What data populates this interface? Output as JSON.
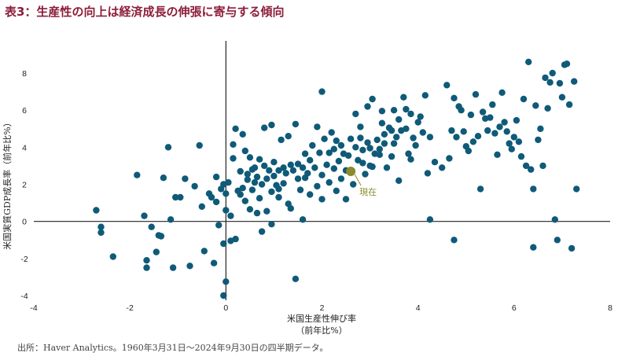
{
  "title": "表3：生産性の向上は経済成長の伸張に寄与する傾向",
  "source": "出所：Haver Analytics。1960年3月31日～2024年9月30日の四半期データ。",
  "chart_data": {
    "type": "scatter",
    "xlabel_line1": "米国生産性伸び率",
    "xlabel_line2": "（前年比%）",
    "ylabel": "米国実質GDP成長率（前年比%）",
    "xlim": [
      -4,
      8
    ],
    "ylim": [
      -4,
      9
    ],
    "xticks": [
      -4,
      -2,
      0,
      2,
      4,
      6,
      8
    ],
    "yticks": [
      -4,
      -2,
      0,
      2,
      4,
      6,
      8
    ],
    "grid": false,
    "point_color": "#0f5a78",
    "highlight_color": "#8c8a2a",
    "highlight": {
      "label": "現在",
      "x": 2.6,
      "y": 2.7
    },
    "points": [
      [
        -2.7,
        0.6
      ],
      [
        -2.6,
        -0.3
      ],
      [
        -2.6,
        -0.6
      ],
      [
        -2.35,
        -1.9
      ],
      [
        -1.85,
        2.5
      ],
      [
        -1.7,
        0.3
      ],
      [
        -1.65,
        -2.1
      ],
      [
        -1.65,
        -2.5
      ],
      [
        -1.55,
        -0.3
      ],
      [
        -1.45,
        -1.65
      ],
      [
        -1.4,
        -0.75
      ],
      [
        -1.35,
        -0.8
      ],
      [
        -1.3,
        2.35
      ],
      [
        -1.2,
        4.0
      ],
      [
        -1.15,
        0.1
      ],
      [
        -1.1,
        -2.5
      ],
      [
        -1.05,
        1.3
      ],
      [
        -0.95,
        1.3
      ],
      [
        -0.85,
        2.3
      ],
      [
        -0.75,
        -2.4
      ],
      [
        -0.65,
        1.9
      ],
      [
        -0.55,
        4.1
      ],
      [
        -0.5,
        0.8
      ],
      [
        -0.45,
        -1.6
      ],
      [
        -0.35,
        1.5
      ],
      [
        -0.3,
        1.3
      ],
      [
        -0.25,
        -2.25
      ],
      [
        -0.2,
        2.4
      ],
      [
        -0.2,
        1.05
      ],
      [
        -0.15,
        -0.2
      ],
      [
        -0.1,
        1.75
      ],
      [
        -0.05,
        2.0
      ],
      [
        -0.05,
        -1.2
      ],
      [
        -0.05,
        -4.0
      ],
      [
        0.0,
        -3.25
      ],
      [
        0.0,
        1.5
      ],
      [
        0.0,
        0.6
      ],
      [
        0.05,
        2.1
      ],
      [
        0.1,
        -1.05
      ],
      [
        0.1,
        0.3
      ],
      [
        0.15,
        4.15
      ],
      [
        0.15,
        3.4
      ],
      [
        0.2,
        5.0
      ],
      [
        0.2,
        -0.95
      ],
      [
        0.25,
        1.65
      ],
      [
        0.3,
        2.7
      ],
      [
        0.35,
        4.7
      ],
      [
        0.35,
        1.8
      ],
      [
        0.4,
        3.8
      ],
      [
        0.4,
        1.1
      ],
      [
        0.45,
        2.55
      ],
      [
        0.5,
        3.45
      ],
      [
        0.5,
        0.65
      ],
      [
        0.55,
        2.8
      ],
      [
        0.55,
        1.7
      ],
      [
        0.6,
        2.9
      ],
      [
        0.6,
        2.1
      ],
      [
        0.65,
        2.4
      ],
      [
        0.65,
        0.45
      ],
      [
        0.7,
        3.35
      ],
      [
        0.7,
        1.25
      ],
      [
        0.75,
        2.0
      ],
      [
        0.75,
        -0.55
      ],
      [
        0.8,
        5.05
      ],
      [
        0.8,
        3.0
      ],
      [
        0.85,
        2.3
      ],
      [
        0.85,
        0.55
      ],
      [
        0.9,
        2.75
      ],
      [
        0.95,
        1.6
      ],
      [
        0.95,
        -0.15
      ],
      [
        1.0,
        3.2
      ],
      [
        1.0,
        2.45
      ],
      [
        1.05,
        1.95
      ],
      [
        1.1,
        2.75
      ],
      [
        1.1,
        1.3
      ],
      [
        1.15,
        4.4
      ],
      [
        1.2,
        2.9
      ],
      [
        1.2,
        2.05
      ],
      [
        1.25,
        2.6
      ],
      [
        1.3,
        4.6
      ],
      [
        1.3,
        0.95
      ],
      [
        1.35,
        3.05
      ],
      [
        1.35,
        0.7
      ],
      [
        1.4,
        2.75
      ],
      [
        1.45,
        -3.1
      ],
      [
        1.45,
        5.25
      ],
      [
        1.5,
        3.1
      ],
      [
        1.5,
        2.3
      ],
      [
        1.55,
        1.7
      ],
      [
        1.6,
        2.9
      ],
      [
        1.6,
        0.1
      ],
      [
        1.65,
        3.65
      ],
      [
        1.7,
        2.6
      ],
      [
        1.75,
        1.45
      ],
      [
        1.75,
        3.3
      ],
      [
        1.8,
        4.1
      ],
      [
        1.85,
        2.9
      ],
      [
        1.9,
        1.9
      ],
      [
        1.95,
        3.7
      ],
      [
        2.0,
        2.5
      ],
      [
        2.0,
        1.2
      ],
      [
        2.0,
        7.0
      ],
      [
        2.05,
        4.45
      ],
      [
        2.1,
        3.05
      ],
      [
        2.15,
        2.1
      ],
      [
        2.15,
        3.7
      ],
      [
        2.2,
        4.8
      ],
      [
        2.25,
        3.9
      ],
      [
        2.3,
        1.65
      ],
      [
        2.3,
        4.35
      ],
      [
        2.35,
        3.25
      ],
      [
        2.4,
        2.3
      ],
      [
        2.4,
        4.1
      ],
      [
        2.45,
        3.65
      ],
      [
        2.5,
        1.2
      ],
      [
        2.5,
        2.75
      ],
      [
        2.55,
        3.55
      ],
      [
        2.6,
        4.45
      ],
      [
        2.65,
        2.0
      ],
      [
        2.7,
        4.0
      ],
      [
        2.75,
        3.3
      ],
      [
        2.8,
        5.1
      ],
      [
        2.8,
        4.5
      ],
      [
        2.85,
        3.85
      ],
      [
        2.9,
        2.55
      ],
      [
        2.95,
        4.25
      ],
      [
        3.0,
        3.95
      ],
      [
        3.0,
        3.0
      ],
      [
        3.05,
        2.95
      ],
      [
        3.1,
        3.65
      ],
      [
        3.15,
        4.4
      ],
      [
        3.2,
        3.9
      ],
      [
        3.25,
        5.3
      ],
      [
        3.3,
        4.7
      ],
      [
        3.3,
        4.2
      ],
      [
        3.35,
        2.9
      ],
      [
        3.4,
        5.05
      ],
      [
        3.45,
        4.9
      ],
      [
        3.5,
        4.2
      ],
      [
        3.55,
        4.55
      ],
      [
        3.6,
        2.2
      ],
      [
        3.65,
        4.9
      ],
      [
        3.7,
        6.7
      ],
      [
        3.75,
        5.0
      ],
      [
        3.8,
        3.65
      ],
      [
        3.85,
        5.8
      ],
      [
        3.9,
        4.5
      ],
      [
        3.95,
        4.1
      ],
      [
        4.0,
        5.35
      ],
      [
        4.05,
        5.65
      ],
      [
        4.1,
        4.8
      ],
      [
        4.15,
        6.8
      ],
      [
        4.2,
        2.6
      ],
      [
        4.25,
        4.55
      ],
      [
        4.35,
        3.2
      ],
      [
        4.5,
        2.9
      ],
      [
        4.6,
        7.35
      ],
      [
        4.65,
        3.4
      ],
      [
        4.7,
        4.9
      ],
      [
        4.75,
        6.65
      ],
      [
        4.8,
        4.55
      ],
      [
        4.85,
        6.2
      ],
      [
        4.9,
        6.0
      ],
      [
        4.95,
        4.85
      ],
      [
        5.0,
        4.05
      ],
      [
        5.05,
        3.8
      ],
      [
        5.1,
        5.75
      ],
      [
        5.15,
        4.3
      ],
      [
        5.2,
        6.85
      ],
      [
        5.25,
        4.6
      ],
      [
        5.3,
        1.75
      ],
      [
        5.35,
        5.9
      ],
      [
        5.4,
        5.55
      ],
      [
        5.45,
        4.9
      ],
      [
        5.5,
        5.6
      ],
      [
        5.55,
        6.3
      ],
      [
        5.6,
        4.75
      ],
      [
        5.65,
        3.6
      ],
      [
        5.7,
        5.1
      ],
      [
        5.75,
        6.95
      ],
      [
        5.8,
        5.35
      ],
      [
        5.85,
        4.85
      ],
      [
        5.9,
        4.2
      ],
      [
        5.95,
        3.9
      ],
      [
        6.0,
        4.55
      ],
      [
        6.05,
        5.45
      ],
      [
        6.1,
        4.3
      ],
      [
        6.15,
        3.5
      ],
      [
        6.2,
        6.6
      ],
      [
        6.25,
        3.0
      ],
      [
        6.3,
        8.6
      ],
      [
        6.35,
        2.8
      ],
      [
        6.4,
        1.75
      ],
      [
        6.45,
        6.25
      ],
      [
        6.5,
        4.4
      ],
      [
        6.55,
        5.0
      ],
      [
        6.6,
        3.0
      ],
      [
        6.65,
        7.75
      ],
      [
        6.7,
        6.1
      ],
      [
        6.75,
        7.5
      ],
      [
        6.8,
        8.0
      ],
      [
        6.85,
        0.1
      ],
      [
        6.9,
        -1.0
      ],
      [
        6.95,
        7.45
      ],
      [
        7.0,
        6.7
      ],
      [
        7.05,
        8.45
      ],
      [
        7.1,
        8.5
      ],
      [
        7.15,
        6.3
      ],
      [
        7.2,
        -1.45
      ],
      [
        7.25,
        7.55
      ],
      [
        7.3,
        1.75
      ],
      [
        4.25,
        0.1
      ],
      [
        4.75,
        -1.0
      ],
      [
        6.4,
        -1.4
      ],
      [
        0.95,
        5.2
      ],
      [
        1.9,
        5.1
      ],
      [
        2.7,
        5.8
      ],
      [
        2.95,
        6.2
      ],
      [
        3.05,
        6.6
      ],
      [
        3.25,
        5.95
      ],
      [
        3.5,
        6.0
      ],
      [
        3.6,
        5.5
      ],
      [
        3.75,
        6.05
      ],
      [
        3.85,
        3.35
      ],
      [
        3.45,
        3.5
      ],
      [
        3.2,
        3.6
      ],
      [
        2.85,
        3.15
      ],
      [
        2.25,
        2.85
      ],
      [
        1.65,
        2.35
      ],
      [
        1.1,
        1.75
      ],
      [
        0.45,
        2.25
      ],
      [
        0.3,
        1.45
      ]
    ]
  }
}
